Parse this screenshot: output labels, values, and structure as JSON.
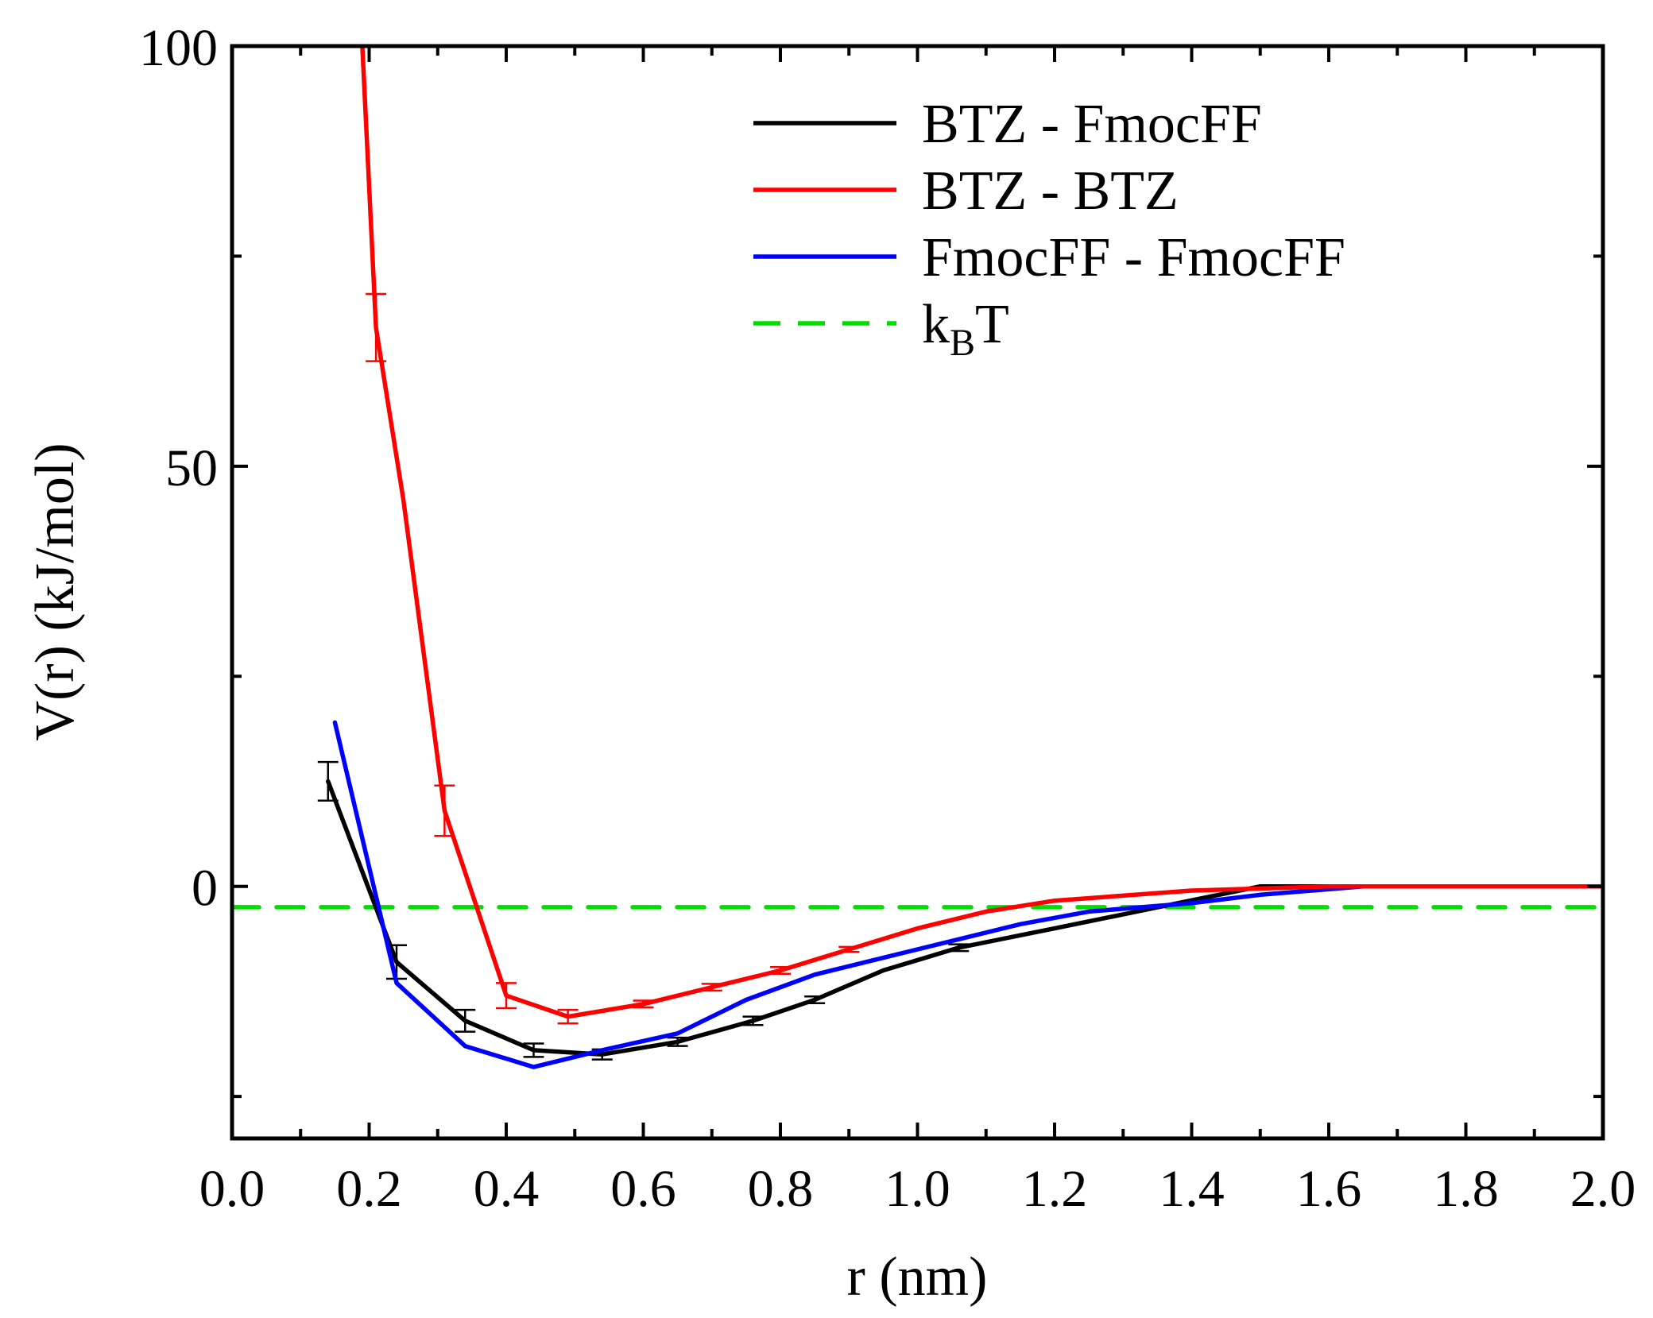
{
  "chart_data": {
    "type": "line",
    "title": "",
    "xlabel": "r (nm)",
    "ylabel": "V(r) (kJ/mol)",
    "xlim": [
      0.0,
      2.0
    ],
    "ylim": [
      -30,
      100
    ],
    "x_ticks": [
      0.0,
      0.2,
      0.4,
      0.6,
      0.8,
      1.0,
      1.2,
      1.4,
      1.6,
      1.8,
      2.0
    ],
    "x_tick_labels": [
      "0.0",
      "0.2",
      "0.4",
      "0.6",
      "0.8",
      "1.0",
      "1.2",
      "1.4",
      "1.6",
      "1.8",
      "2.0"
    ],
    "x_minor_ticks": [
      0.1,
      0.3,
      0.5,
      0.7,
      0.9,
      1.1,
      1.3,
      1.5,
      1.7,
      1.9
    ],
    "y_ticks": [
      0,
      50,
      100
    ],
    "y_tick_labels": [
      "0",
      "50",
      "100"
    ],
    "y_minor_ticks": [
      -25,
      25,
      75
    ],
    "grid": false,
    "legend_position": "top-right",
    "series": [
      {
        "name": "BTZ - FmocFF",
        "color": "#000000",
        "dash": "solid",
        "x": [
          0.14,
          0.24,
          0.34,
          0.44,
          0.54,
          0.65,
          0.76,
          0.85,
          0.95,
          1.06,
          1.2,
          1.35,
          1.5,
          1.64,
          2.0
        ],
        "y": [
          12.5,
          -9,
          -16,
          -19.5,
          -20,
          -18.5,
          -16,
          -13.5,
          -10,
          -7.3,
          -5,
          -2.5,
          0,
          0,
          0
        ],
        "err": [
          2.3,
          2.0,
          1.3,
          0.8,
          0.6,
          0.5,
          0.5,
          0.4,
          0,
          0.4,
          0,
          0,
          0,
          0,
          0
        ]
      },
      {
        "name": "BTZ - BTZ",
        "color": "#ff0000",
        "dash": "solid",
        "x": [
          0.19,
          0.21,
          0.25,
          0.31,
          0.4,
          0.49,
          0.6,
          0.7,
          0.8,
          0.9,
          1.0,
          1.1,
          1.2,
          1.4,
          1.6,
          2.0
        ],
        "y": [
          100,
          66.5,
          46,
          9,
          -13,
          -15.5,
          -14,
          -12,
          -10,
          -7.5,
          -5,
          -3,
          -1.7,
          -0.5,
          0,
          0
        ],
        "err": [
          0,
          4,
          0,
          3,
          1.5,
          0.8,
          0.4,
          0.4,
          0.4,
          0.3,
          0,
          0,
          0,
          0,
          0,
          0
        ]
      },
      {
        "name": "FmocFF - FmocFF",
        "color": "#0000ff",
        "dash": "solid",
        "x": [
          0.15,
          0.24,
          0.34,
          0.44,
          0.54,
          0.65,
          0.75,
          0.85,
          0.95,
          1.05,
          1.15,
          1.25,
          1.4,
          1.5,
          1.65,
          2.0
        ],
        "y": [
          19.5,
          -11.5,
          -19,
          -21.5,
          -19.5,
          -17.5,
          -13.5,
          -10.5,
          -8.5,
          -6.5,
          -4.5,
          -3,
          -2,
          -1,
          0,
          0
        ]
      },
      {
        "name": "kBT",
        "color": "#00dd00",
        "dash": "dashed",
        "x": [
          0.0,
          2.0
        ],
        "y": [
          -2.48,
          -2.48
        ]
      }
    ],
    "legend": [
      {
        "label": "BTZ - FmocFF",
        "color": "#000000",
        "dash": "solid"
      },
      {
        "label": "BTZ - BTZ",
        "color": "#ff0000",
        "dash": "solid"
      },
      {
        "label": "FmocFF - FmocFF",
        "color": "#0000ff",
        "dash": "solid"
      },
      {
        "label": "k",
        "sub": "B",
        "label_suffix": "T",
        "color": "#00dd00",
        "dash": "dashed"
      }
    ]
  }
}
